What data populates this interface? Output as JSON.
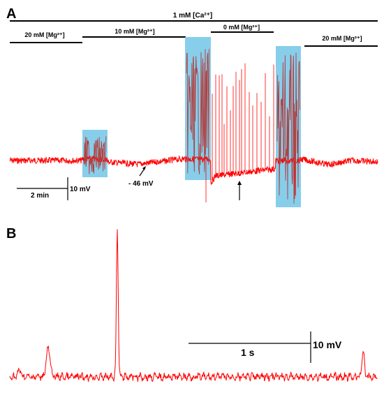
{
  "panel_a": {
    "letter": "A",
    "calcium_label": "1 mM [Ca²⁺]",
    "mg_bars": [
      {
        "label": "20 mM [Mg²⁺]"
      },
      {
        "label": "10 mM [Mg²⁺]"
      },
      {
        "label": "0 mM [Mg²⁺]"
      },
      {
        "label": "20 mM [Mg²⁺]"
      }
    ],
    "resting_label": "- 46 mV",
    "scale_time": "2 min",
    "scale_voltage": "10 mV"
  },
  "panel_b": {
    "letter": "B",
    "scale_time": "1 s",
    "scale_voltage": "10 mV"
  },
  "colors": {
    "trace": "#ff0000",
    "highlight": "#87ceeb",
    "burst": "#b04040",
    "ink": "#000000"
  }
}
